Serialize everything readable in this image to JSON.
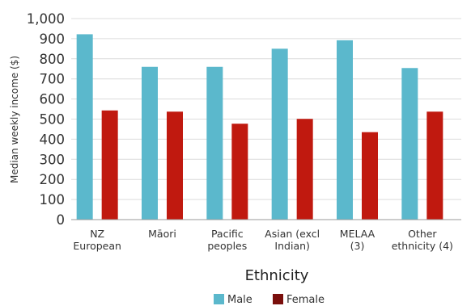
{
  "chart_data": {
    "type": "bar",
    "xlabel": "Ethnicity",
    "ylabel": "Median weekly income ($)",
    "ylim": [
      0,
      1000
    ],
    "yticks": [
      0,
      100,
      200,
      300,
      400,
      500,
      600,
      700,
      800,
      900,
      1000
    ],
    "ytick_labels": [
      "0",
      "100",
      "200",
      "300",
      "400",
      "500",
      "600",
      "700",
      "800",
      "900",
      "1,000"
    ],
    "grid": true,
    "legend_position": "bottom",
    "categories": [
      [
        "NZ",
        "European"
      ],
      [
        "Māori"
      ],
      [
        "Pacific",
        "peoples"
      ],
      [
        "Asian (excl",
        "Indian)"
      ],
      [
        "MELAA",
        "(3)"
      ],
      [
        "Other",
        "ethnicity (4)"
      ]
    ],
    "series": [
      {
        "name": "Male",
        "color": "#5bb8cc",
        "values": [
          922,
          760,
          760,
          850,
          892,
          754
        ]
      },
      {
        "name": "Female",
        "color": "#c0190f",
        "values": [
          543,
          537,
          477,
          501,
          435,
          537
        ]
      }
    ],
    "legend_swatch_colors": [
      "#5bb8cc",
      "#7a0f0c"
    ]
  }
}
